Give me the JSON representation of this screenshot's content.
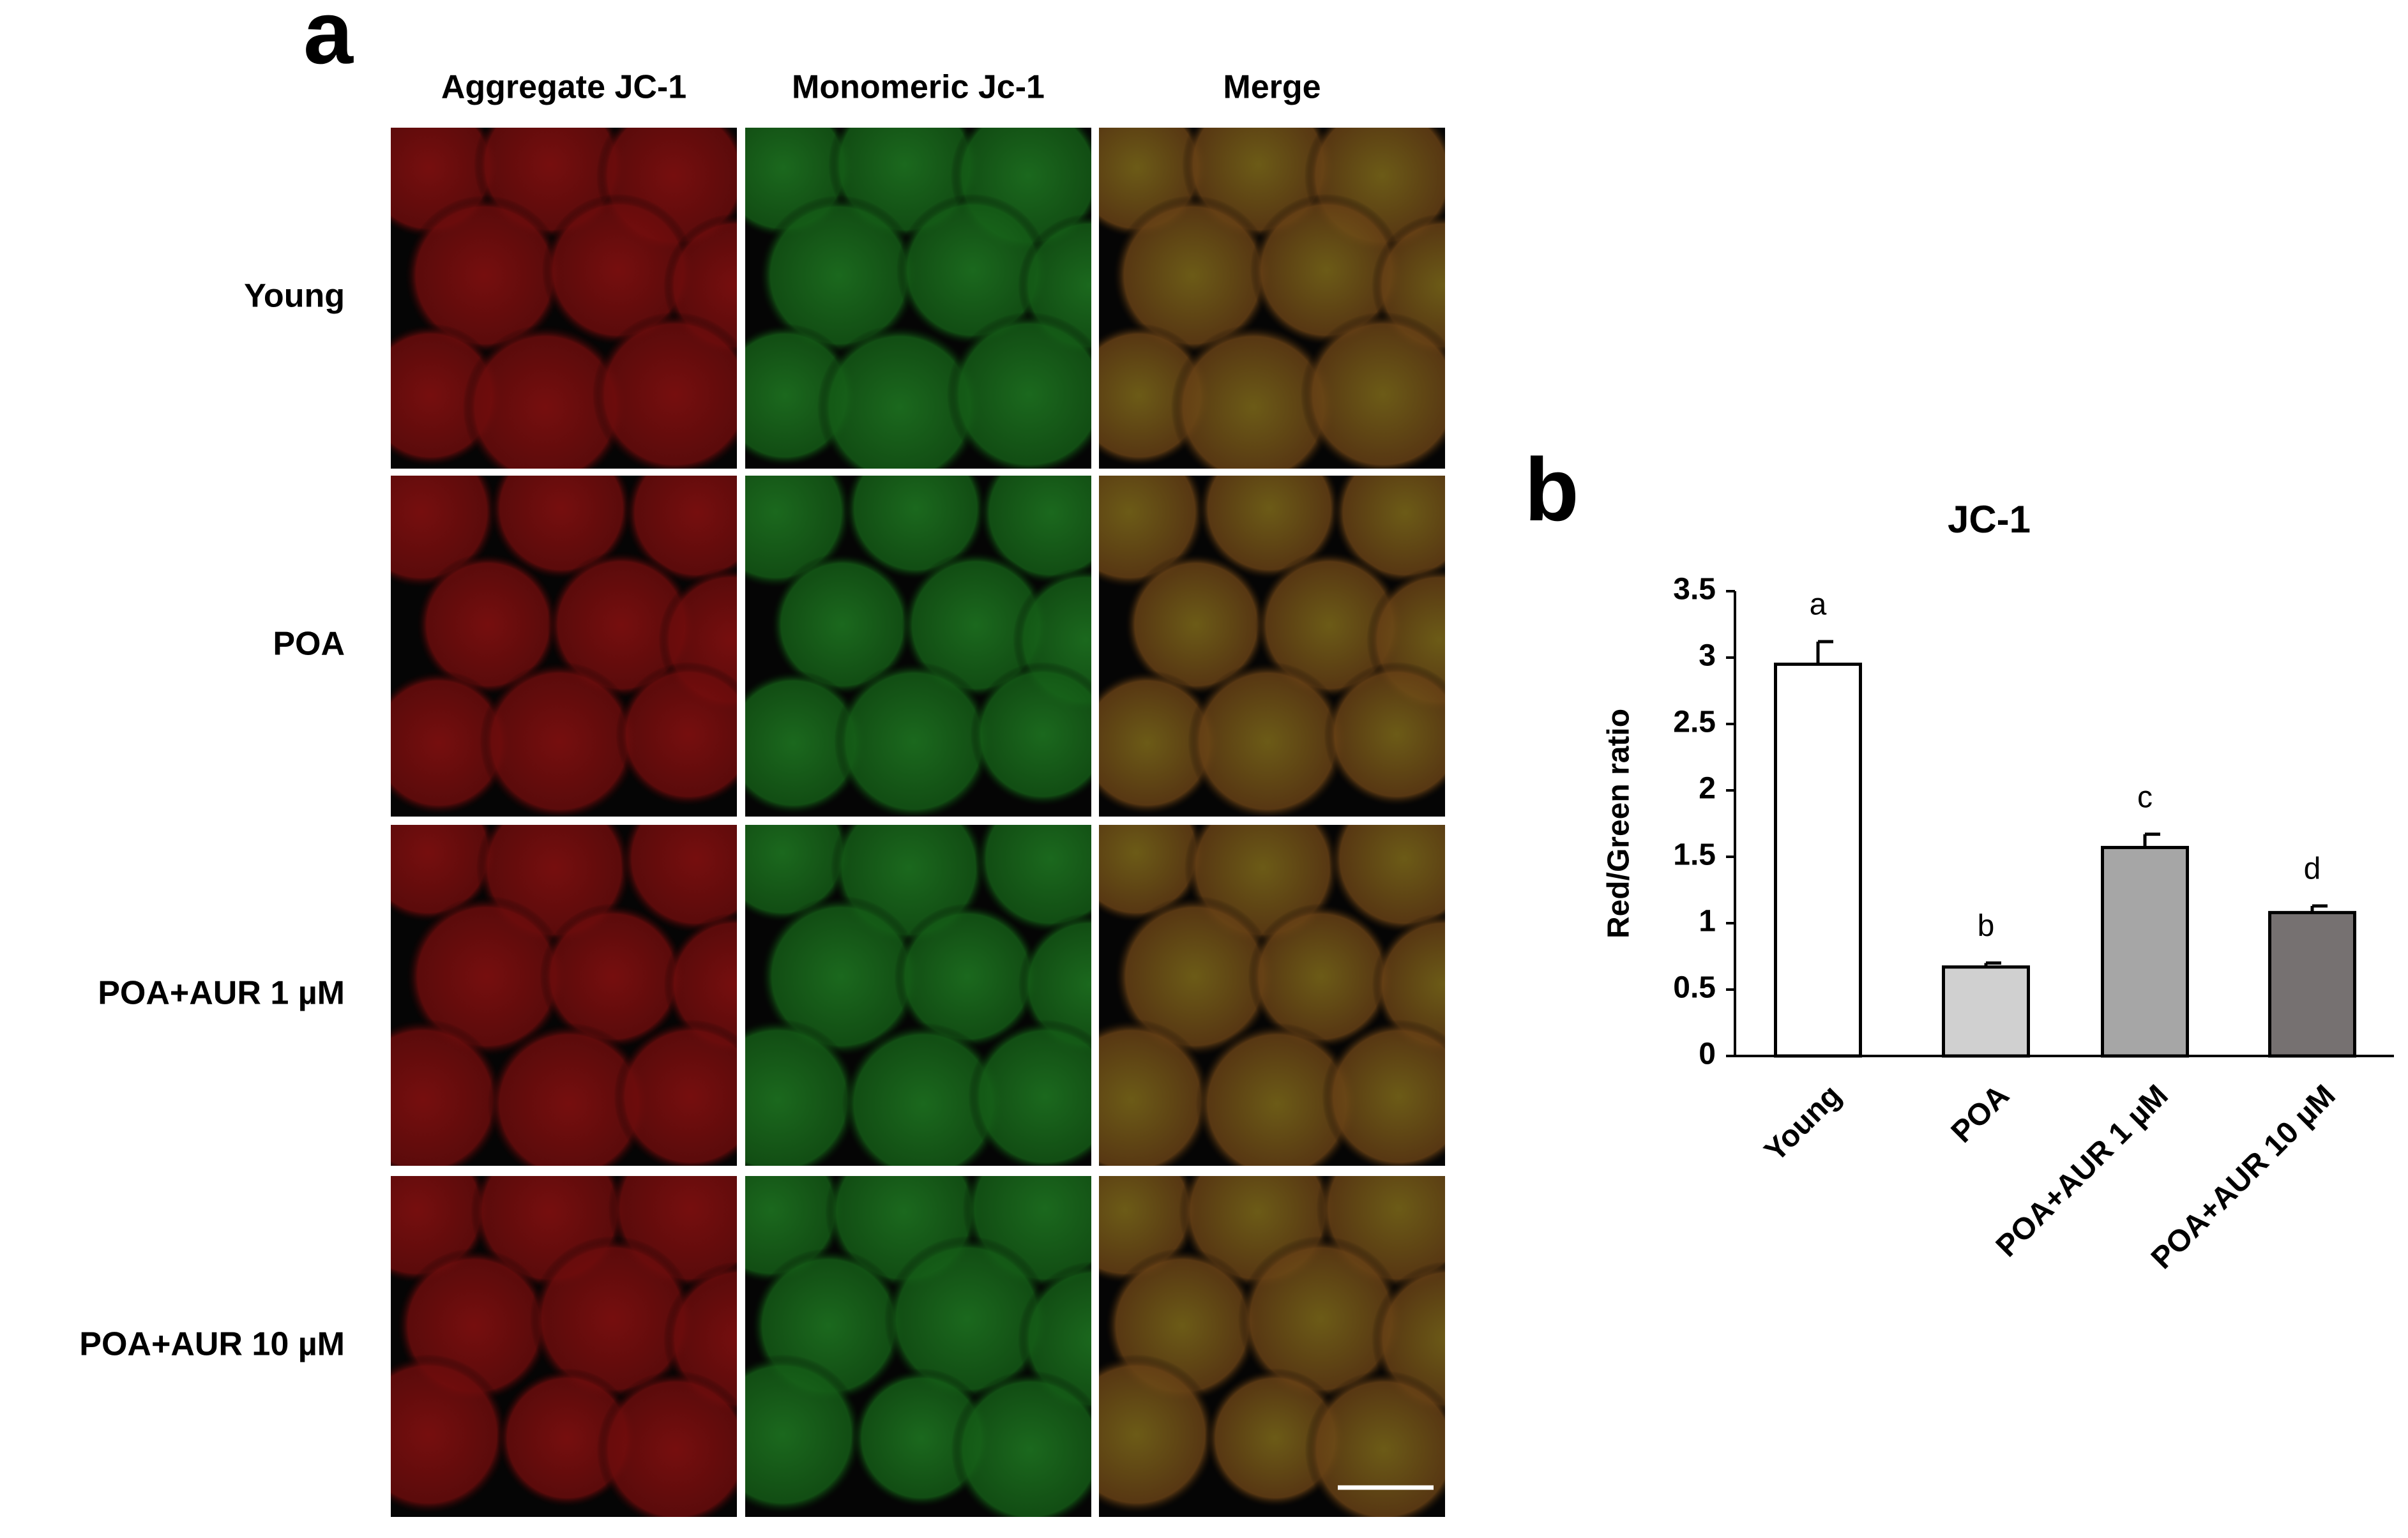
{
  "panel_a": {
    "label": "a",
    "columns": [
      "Aggregate JC-1",
      "Monomeric Jc-1",
      "Merge"
    ],
    "rows": [
      "Young",
      "POA",
      "POA+AUR 1 µM",
      "POA+AUR 10 µM"
    ]
  },
  "chart_data": {
    "type": "bar",
    "panel_label": "b",
    "title": "JC-1",
    "y_label": "Red/Green ratio",
    "categories": [
      "Young",
      "POA",
      "POA+AUR 1 µM",
      "POA+AUR 10 µM"
    ],
    "values": [
      2.95,
      0.67,
      1.57,
      1.08
    ],
    "errors": [
      0.17,
      0.03,
      0.1,
      0.05
    ],
    "significance_labels": [
      "a",
      "b",
      "c",
      "d"
    ],
    "colors": [
      "#ffffff",
      "#d0d0d0",
      "#a6a6a6",
      "#767171"
    ],
    "ylim": [
      0,
      3.5
    ],
    "yticks": [
      0,
      0.5,
      1,
      1.5,
      2,
      2.5,
      3,
      3.5
    ]
  }
}
